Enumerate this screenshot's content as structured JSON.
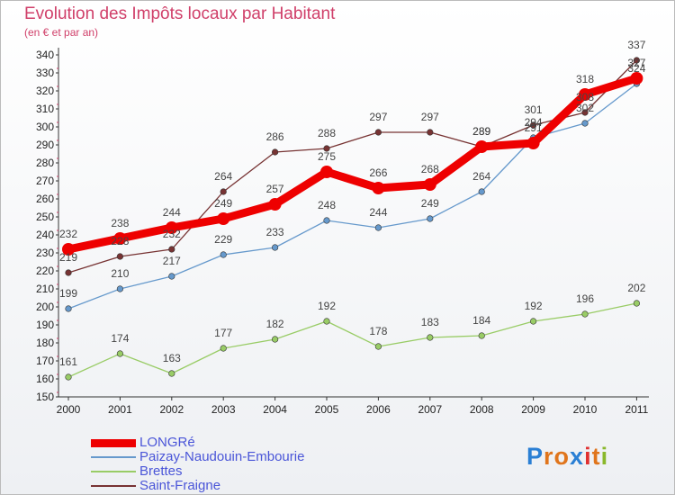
{
  "chart_data": {
    "type": "line",
    "title": "Evolution des Impôts locaux par Habitant",
    "subtitle": "(en € et par an)",
    "categories": [
      "2000",
      "2001",
      "2002",
      "2003",
      "2004",
      "2005",
      "2006",
      "2007",
      "2008",
      "2009",
      "2010",
      "2011"
    ],
    "ylim": [
      150,
      340
    ],
    "ytick_step": 10,
    "grid": false,
    "legend_position": "bottom-left",
    "series": [
      {
        "name": "LONGRé",
        "color": "#ee0000",
        "values": [
          232,
          238,
          244,
          249,
          257,
          275,
          266,
          268,
          289,
          291,
          318,
          327
        ],
        "labels": [
          "232",
          "238",
          "244",
          "249",
          "257",
          "275",
          "266",
          "268",
          "289",
          "291",
          "318",
          "327"
        ]
      },
      {
        "name": "Paizay-Naudouin-Embourie",
        "color": "#6699cc",
        "values": [
          199,
          210,
          217,
          229,
          233,
          248,
          244,
          249,
          264,
          294,
          302,
          324
        ],
        "labels": [
          "199",
          "210",
          "217",
          "229",
          "233",
          "248",
          "244",
          "249",
          "264",
          "294",
          "302",
          "324"
        ]
      },
      {
        "name": "Brettes",
        "color": "#99cc66",
        "values": [
          161,
          174,
          163,
          177,
          182,
          192,
          178,
          183,
          184,
          192,
          196,
          202
        ],
        "labels": [
          "161",
          "174",
          "163",
          "177",
          "182",
          "192",
          "178",
          "183",
          "184",
          "192",
          "196",
          "202"
        ]
      },
      {
        "name": "Saint-Fraigne",
        "color": "#773333",
        "values": [
          219,
          228,
          232,
          264,
          286,
          288,
          297,
          297,
          289,
          301,
          308,
          337
        ],
        "labels": [
          "219",
          "228",
          "232",
          "264",
          "286",
          "288",
          "297",
          "297",
          "289",
          "301",
          "308",
          "337"
        ]
      }
    ]
  },
  "brand": {
    "text": "Proxiti"
  }
}
